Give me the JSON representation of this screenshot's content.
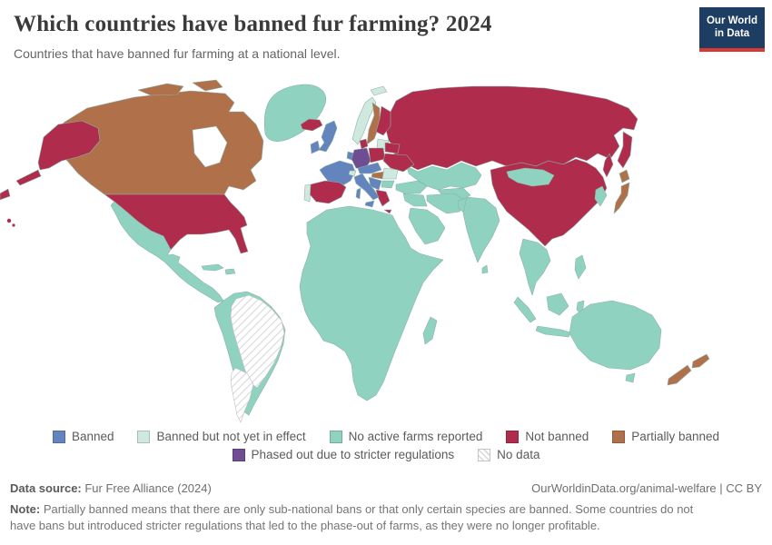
{
  "header": {
    "title": "Which countries have banned fur farming? 2024",
    "subtitle": "Countries that have banned fur farming at a national level.",
    "logo": {
      "line1": "Our World",
      "line2": "in Data",
      "bg_color": "#1d3d63",
      "accent_color": "#d73a34"
    }
  },
  "legend": {
    "items": [
      {
        "key": "banned",
        "label": "Banned",
        "color": "#6484bd",
        "row": 1
      },
      {
        "key": "banned_not_yet",
        "label": "Banned but not yet in effect",
        "color": "#cfe9de",
        "row": 1
      },
      {
        "key": "no_active_farms",
        "label": "No active farms reported",
        "color": "#8ed2bf",
        "row": 1
      },
      {
        "key": "not_banned",
        "label": "Not banned",
        "color": "#b02c4c",
        "row": 1
      },
      {
        "key": "partially_banned",
        "label": "Partially banned",
        "color": "#b0714a",
        "row": 1
      },
      {
        "key": "phased_out",
        "label": "Phased out due to stricter regulations",
        "color": "#6e4d92",
        "row": 2
      },
      {
        "key": "no_data",
        "label": "No data",
        "color": "hatch",
        "row": 2
      }
    ]
  },
  "chart_data": {
    "type": "choropleth",
    "title": "Which countries have banned fur farming? 2024",
    "subtitle": "Countries that have banned fur farming at a national level.",
    "categories": [
      "Banned",
      "Banned but not yet in effect",
      "No active farms reported",
      "Not banned",
      "Partially banned",
      "Phased out due to stricter regulations",
      "No data"
    ],
    "legend_position": "bottom-center",
    "regions": {
      "greenland": "no_active_farms",
      "canada": "partially_banned",
      "alaska": "not_banned",
      "usa": "not_banned",
      "hawaii": "not_banned",
      "mexico_central_america": "no_active_farms",
      "cuba": "no_active_farms",
      "hispaniola": "no_active_farms",
      "south_america": "no_active_farms",
      "brazil": "no_data",
      "argentina": "no_data",
      "iceland": "not_banned",
      "svalbard": "banned_not_yet",
      "norway": "banned_not_yet",
      "sweden": "partially_banned",
      "finland": "not_banned",
      "baltics": "banned_not_yet",
      "denmark": "not_banned",
      "uk": "banned",
      "ireland": "banned",
      "benelux": "banned",
      "germany": "phased_out",
      "poland": "not_banned",
      "belarus": "not_banned",
      "ukraine": "not_banned",
      "france": "banned",
      "switzerland": "banned_not_yet",
      "alpine_states": "banned",
      "hungary": "partially_banned",
      "romania": "banned_not_yet",
      "balkans": "banned",
      "bulgaria": "no_active_farms",
      "greece": "not_banned",
      "italy": "banned",
      "spain": "not_banned",
      "portugal": "banned_not_yet",
      "russia": "not_banned",
      "turkey": "no_active_farms",
      "kazakhstan_central_asia": "no_active_farms",
      "middle_east": "no_active_farms",
      "india": "no_active_farms",
      "sri_lanka": "no_active_farms",
      "china": "not_banned",
      "mongolia": "no_active_farms",
      "korea": "no_active_farms",
      "japan": "partially_banned",
      "southeast_asia": "no_active_farms",
      "philippines": "no_active_farms",
      "indonesia": "no_active_farms",
      "new_guinea": "no_active_farms",
      "australia": "no_active_farms",
      "new_zealand": "partially_banned"
    }
  },
  "footer": {
    "source_label": "Data source:",
    "source_text": " Fur Free Alliance (2024)",
    "link_text": "OurWorldinData.org/animal-welfare | CC BY",
    "note_label": "Note:",
    "note_text": " Partially banned means that there are only sub-national bans or that only certain species are banned. Some countries do not have bans but introduced stricter regulations that led to the phase-out of farms, as they were no longer profitable."
  }
}
